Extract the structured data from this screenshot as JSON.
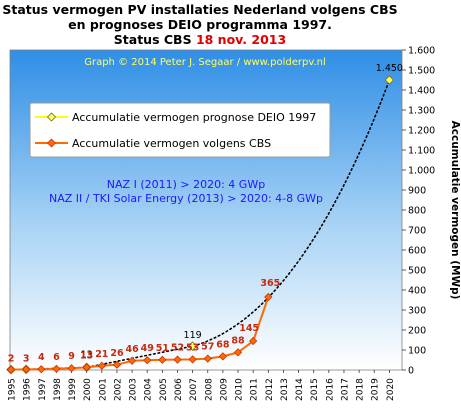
{
  "title": {
    "line1": "Status vermogen PV installaties Nederland volgens CBS",
    "line2": "en prognoses DEIO programma 1997.",
    "line3_prefix": "Status CBS ",
    "line3_date": "18 nov. 2013"
  },
  "credit": "Graph © 2014 Peter J. Segaar / www.polderpv.nl",
  "notes": [
    "NAZ  I (2011) > 2020: 4 GWp",
    "NAZ II / TKI Solar Energy (2013) > 2020: 4-8 GWp"
  ],
  "colors": {
    "series_cbs": "#ff6a00",
    "series_deio": "#ffff00",
    "label_cbs": "#c8280a",
    "title_highlight": "#e00000",
    "credit": "#ffff66",
    "notes": "#1a1aff",
    "plot_bg_top": "#2f8ee6",
    "plot_bg_bottom": "#ffffff"
  },
  "chart_data": {
    "type": "line",
    "x": [
      1995,
      1996,
      1997,
      1998,
      1999,
      2000,
      2001,
      2002,
      2003,
      2004,
      2005,
      2006,
      2007,
      2008,
      2009,
      2010,
      2011,
      2012,
      2013,
      2014,
      2015,
      2016,
      2017,
      2018,
      2019,
      2020
    ],
    "ylabel": "Accumulatie vermogen (MWp)",
    "ylim": [
      0,
      1600
    ],
    "yticks": [
      0,
      100,
      200,
      300,
      400,
      500,
      600,
      700,
      800,
      900,
      1000,
      1100,
      1200,
      1300,
      1400,
      1500,
      1600
    ],
    "ytick_labels": [
      "0",
      "100",
      "200",
      "300",
      "400",
      "500",
      "600",
      "700",
      "800",
      "900",
      "1.000",
      "1.100",
      "1.200",
      "1.300",
      "1.400",
      "1.500",
      "1.600"
    ],
    "legend_position": "upper-left",
    "series": [
      {
        "name": "Accumulatie vermogen prognose DEIO 1997",
        "style": "dotted line with diamond markers",
        "x": [
          1995,
          1996,
          2000,
          2007,
          2020
        ],
        "values": [
          2,
          3,
          13,
          119,
          1450
        ],
        "labels": [
          "2",
          "3",
          "13",
          "119",
          "1.450"
        ]
      },
      {
        "name": "Accumulatie vermogen volgens CBS",
        "style": "solid line with diamond markers",
        "x": [
          1995,
          1996,
          1997,
          1998,
          1999,
          2000,
          2001,
          2002,
          2003,
          2004,
          2005,
          2006,
          2007,
          2008,
          2009,
          2010,
          2011,
          2012
        ],
        "values": [
          2,
          3,
          4,
          6,
          9,
          13,
          21,
          26,
          46,
          49,
          51,
          52,
          53,
          57,
          68,
          88,
          145,
          365
        ],
        "labels": [
          "2",
          "3",
          "4",
          "6",
          "9",
          "13",
          "21",
          "26",
          "46",
          "49",
          "51",
          "52",
          "53",
          "57",
          "68",
          "88",
          "145",
          "365"
        ]
      }
    ]
  }
}
